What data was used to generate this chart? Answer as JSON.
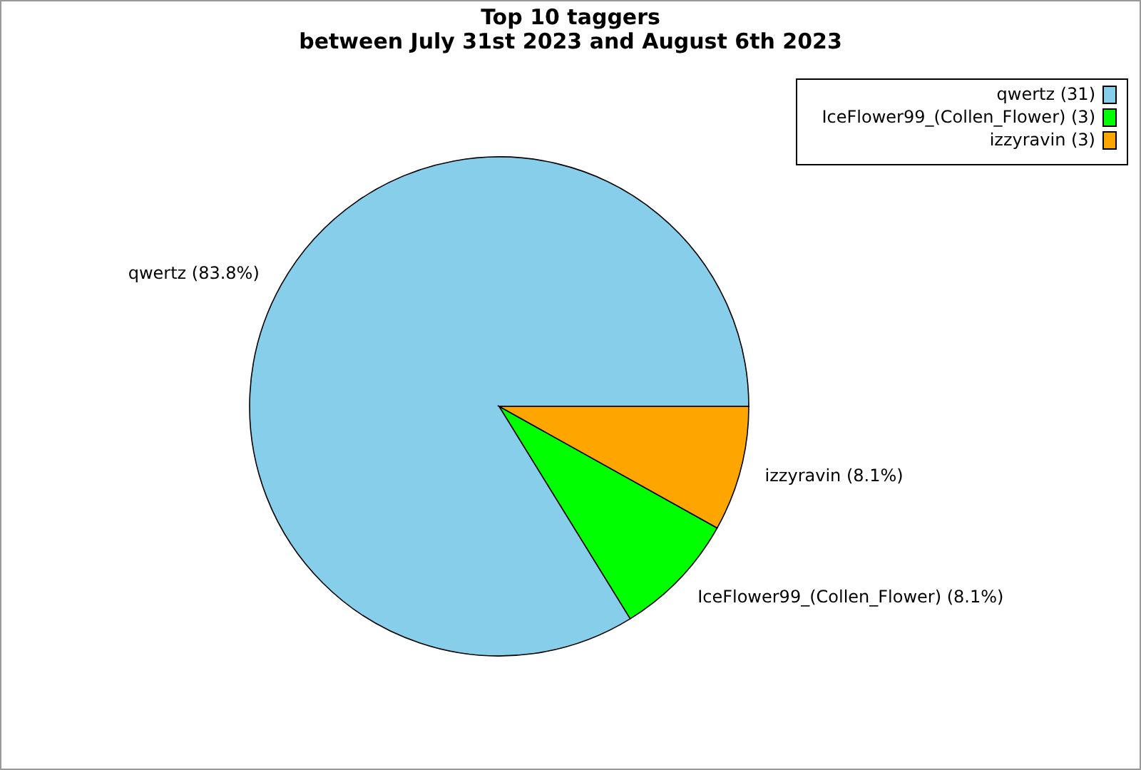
{
  "chart_data": {
    "type": "pie",
    "title": "Top 10 taggers\nbetween July 31st 2023 and August 6th 2023",
    "categories": [
      "qwertz (31)",
      "IceFlower99_(Collen_Flower) (3)",
      "izzyravin (3)"
    ],
    "values": [
      83.8,
      8.1,
      8.1
    ],
    "value_labels": [
      "qwertz (83.8%)",
      "IceFlower99_(Collen_Flower) (8.1%)",
      "izzyravin (8.1%)"
    ],
    "colors": [
      "#87ceeb",
      "#00ff00",
      "#ffa500"
    ],
    "legend": "top right"
  }
}
